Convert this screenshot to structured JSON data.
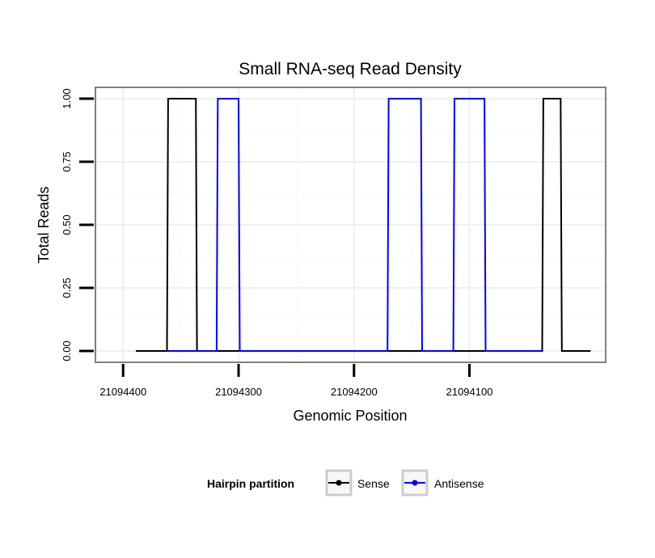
{
  "chart_data": {
    "type": "line",
    "title": "Small RNA-seq Read Density",
    "xlabel": "Genomic Position",
    "ylabel": "Total Reads",
    "x_reversed": true,
    "xlim": [
      21094424,
      21093982
    ],
    "ylim": [
      -0.045,
      1.045
    ],
    "x_ticks": [
      {
        "value": 21094400,
        "label": "21094400"
      },
      {
        "value": 21094300,
        "label": "21094300"
      },
      {
        "value": 21094200,
        "label": "21094200"
      },
      {
        "value": 21094100,
        "label": "21094100"
      }
    ],
    "y_ticks": [
      {
        "value": 0,
        "label": "0.00"
      },
      {
        "value": 0.25,
        "label": "0.25"
      },
      {
        "value": 0.5,
        "label": "0.50"
      },
      {
        "value": 0.75,
        "label": "0.75"
      },
      {
        "value": 1,
        "label": "1.00"
      }
    ],
    "grid": true,
    "legend": {
      "title": "Hairpin partition",
      "position": "bottom"
    },
    "series": [
      {
        "name": "Sense",
        "color": "#000000",
        "x": [
          21094389,
          21094362,
          21094361,
          21094337,
          21094336,
          21094037,
          21094036,
          21094021,
          21094020,
          21093995
        ],
        "y": [
          0,
          0,
          1,
          1,
          0,
          0,
          1,
          1,
          0,
          0
        ]
      },
      {
        "name": "Antisense",
        "color": "#0000ff",
        "x": [
          21094362,
          21094319,
          21094318,
          21094300,
          21094299,
          21094171,
          21094170,
          21094142,
          21094141,
          21094114,
          21094113,
          21094087,
          21094086,
          21094037
        ],
        "y": [
          0,
          0,
          1,
          1,
          0,
          0,
          1,
          1,
          0,
          0,
          1,
          1,
          0,
          0
        ]
      }
    ]
  }
}
